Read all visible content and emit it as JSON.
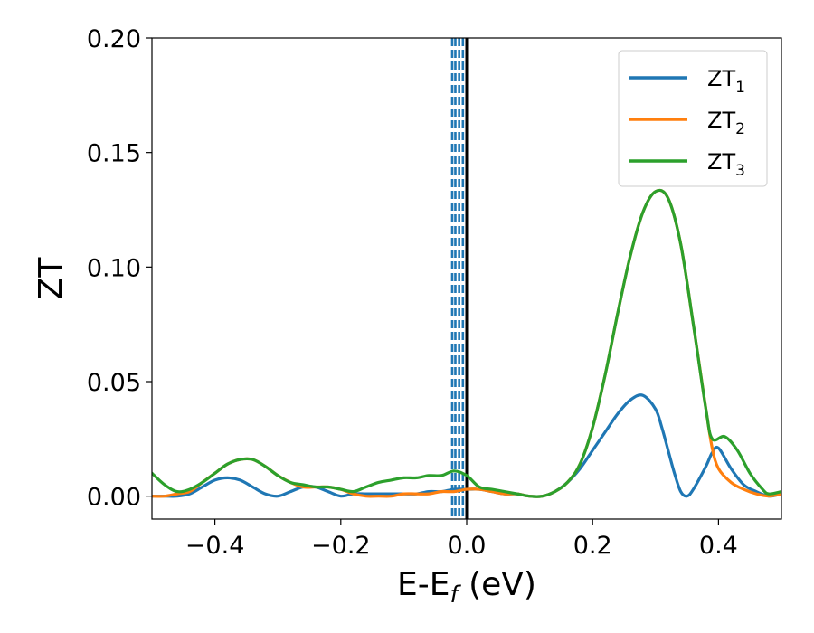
{
  "chart_data": {
    "type": "line",
    "title": "",
    "xlabel": {
      "main": "E-E",
      "sub": "f",
      "unit": " (eV)"
    },
    "ylabel": "ZT",
    "xlim": [
      -0.5,
      0.5
    ],
    "ylim": [
      -0.01,
      0.2
    ],
    "xticks": [
      -0.4,
      -0.2,
      0.0,
      0.2,
      0.4
    ],
    "xtick_labels": [
      "−0.4",
      "−0.2",
      "0.0",
      "0.2",
      "0.4"
    ],
    "yticks": [
      0.0,
      0.05,
      0.1,
      0.15,
      0.2
    ],
    "ytick_labels": [
      "0.00",
      "0.05",
      "0.10",
      "0.15",
      "0.20"
    ],
    "grid": false,
    "legend_position": "top-right",
    "vlines": [
      {
        "x": -0.023,
        "style": "dashed",
        "color": "#1f77b4"
      },
      {
        "x": -0.018,
        "style": "dashed",
        "color": "#1f77b4"
      },
      {
        "x": -0.012,
        "style": "dashed",
        "color": "#1f77b4"
      },
      {
        "x": -0.006,
        "style": "dashed",
        "color": "#1f77b4"
      },
      {
        "x": 0.0,
        "style": "solid",
        "color": "#000000"
      }
    ],
    "series": [
      {
        "name": "ZT",
        "name_sub": "1",
        "color": "#1f77b4",
        "points": [
          [
            -0.5,
            0.0
          ],
          [
            -0.48,
            0.0
          ],
          [
            -0.46,
            0.0
          ],
          [
            -0.44,
            0.001
          ],
          [
            -0.42,
            0.004
          ],
          [
            -0.4,
            0.007
          ],
          [
            -0.38,
            0.008
          ],
          [
            -0.36,
            0.007
          ],
          [
            -0.34,
            0.004
          ],
          [
            -0.32,
            0.001
          ],
          [
            -0.3,
            0.0
          ],
          [
            -0.28,
            0.002
          ],
          [
            -0.26,
            0.004
          ],
          [
            -0.24,
            0.004
          ],
          [
            -0.22,
            0.002
          ],
          [
            -0.2,
            0.0
          ],
          [
            -0.18,
            0.001
          ],
          [
            -0.16,
            0.001
          ],
          [
            -0.14,
            0.001
          ],
          [
            -0.12,
            0.001
          ],
          [
            -0.1,
            0.001
          ],
          [
            -0.08,
            0.001
          ],
          [
            -0.06,
            0.002
          ],
          [
            -0.04,
            0.002
          ],
          [
            -0.02,
            0.003
          ],
          [
            0.0,
            0.003
          ],
          [
            0.02,
            0.003
          ],
          [
            0.04,
            0.002
          ],
          [
            0.06,
            0.001
          ],
          [
            0.08,
            0.001
          ],
          [
            0.1,
            0.0
          ],
          [
            0.12,
            0.0
          ],
          [
            0.14,
            0.002
          ],
          [
            0.16,
            0.006
          ],
          [
            0.18,
            0.012
          ],
          [
            0.2,
            0.02
          ],
          [
            0.22,
            0.028
          ],
          [
            0.24,
            0.036
          ],
          [
            0.26,
            0.042
          ],
          [
            0.28,
            0.044
          ],
          [
            0.3,
            0.038
          ],
          [
            0.31,
            0.03
          ],
          [
            0.32,
            0.02
          ],
          [
            0.33,
            0.01
          ],
          [
            0.34,
            0.002
          ],
          [
            0.35,
            0.0
          ],
          [
            0.36,
            0.003
          ],
          [
            0.38,
            0.013
          ],
          [
            0.39,
            0.019
          ],
          [
            0.4,
            0.021
          ],
          [
            0.42,
            0.012
          ],
          [
            0.44,
            0.005
          ],
          [
            0.46,
            0.002
          ],
          [
            0.48,
            0.0
          ],
          [
            0.5,
            0.001
          ]
        ]
      },
      {
        "name": "ZT",
        "name_sub": "2",
        "color": "#ff7f0e",
        "points": [
          [
            -0.5,
            0.0
          ],
          [
            -0.48,
            0.0
          ],
          [
            -0.46,
            0.001
          ],
          [
            -0.44,
            0.002
          ],
          [
            -0.42,
            0.006
          ],
          [
            -0.4,
            0.01
          ],
          [
            -0.38,
            0.014
          ],
          [
            -0.36,
            0.016
          ],
          [
            -0.34,
            0.016
          ],
          [
            -0.32,
            0.013
          ],
          [
            -0.3,
            0.009
          ],
          [
            -0.28,
            0.006
          ],
          [
            -0.26,
            0.004
          ],
          [
            -0.24,
            0.004
          ],
          [
            -0.22,
            0.004
          ],
          [
            -0.2,
            0.003
          ],
          [
            -0.18,
            0.001
          ],
          [
            -0.16,
            0.0
          ],
          [
            -0.14,
            0.0
          ],
          [
            -0.12,
            0.0
          ],
          [
            -0.1,
            0.001
          ],
          [
            -0.08,
            0.001
          ],
          [
            -0.06,
            0.001
          ],
          [
            -0.04,
            0.002
          ],
          [
            -0.02,
            0.002
          ],
          [
            0.0,
            0.003
          ],
          [
            0.02,
            0.003
          ],
          [
            0.04,
            0.002
          ],
          [
            0.06,
            0.001
          ],
          [
            0.08,
            0.001
          ],
          [
            0.1,
            0.0
          ],
          [
            0.12,
            0.0
          ],
          [
            0.14,
            0.002
          ],
          [
            0.16,
            0.006
          ],
          [
            0.18,
            0.014
          ],
          [
            0.2,
            0.03
          ],
          [
            0.22,
            0.053
          ],
          [
            0.24,
            0.08
          ],
          [
            0.26,
            0.105
          ],
          [
            0.28,
            0.124
          ],
          [
            0.3,
            0.133
          ],
          [
            0.32,
            0.13
          ],
          [
            0.34,
            0.11
          ],
          [
            0.36,
            0.075
          ],
          [
            0.38,
            0.038
          ],
          [
            0.39,
            0.021
          ],
          [
            0.4,
            0.012
          ],
          [
            0.42,
            0.006
          ],
          [
            0.44,
            0.003
          ],
          [
            0.46,
            0.001
          ],
          [
            0.48,
            0.0
          ],
          [
            0.5,
            0.001
          ]
        ]
      },
      {
        "name": "ZT",
        "name_sub": "3",
        "color": "#2ca02c",
        "points": [
          [
            -0.5,
            0.01
          ],
          [
            -0.48,
            0.005
          ],
          [
            -0.46,
            0.002
          ],
          [
            -0.44,
            0.003
          ],
          [
            -0.42,
            0.006
          ],
          [
            -0.4,
            0.01
          ],
          [
            -0.38,
            0.014
          ],
          [
            -0.36,
            0.016
          ],
          [
            -0.34,
            0.016
          ],
          [
            -0.32,
            0.013
          ],
          [
            -0.3,
            0.009
          ],
          [
            -0.28,
            0.006
          ],
          [
            -0.26,
            0.005
          ],
          [
            -0.24,
            0.004
          ],
          [
            -0.22,
            0.004
          ],
          [
            -0.2,
            0.003
          ],
          [
            -0.18,
            0.002
          ],
          [
            -0.16,
            0.004
          ],
          [
            -0.14,
            0.006
          ],
          [
            -0.12,
            0.007
          ],
          [
            -0.1,
            0.008
          ],
          [
            -0.08,
            0.008
          ],
          [
            -0.06,
            0.009
          ],
          [
            -0.04,
            0.009
          ],
          [
            -0.02,
            0.011
          ],
          [
            0.0,
            0.009
          ],
          [
            0.02,
            0.004
          ],
          [
            0.04,
            0.003
          ],
          [
            0.06,
            0.002
          ],
          [
            0.08,
            0.001
          ],
          [
            0.1,
            0.0
          ],
          [
            0.12,
            0.0
          ],
          [
            0.14,
            0.002
          ],
          [
            0.16,
            0.006
          ],
          [
            0.18,
            0.014
          ],
          [
            0.2,
            0.03
          ],
          [
            0.22,
            0.053
          ],
          [
            0.24,
            0.08
          ],
          [
            0.26,
            0.105
          ],
          [
            0.28,
            0.124
          ],
          [
            0.3,
            0.133
          ],
          [
            0.32,
            0.13
          ],
          [
            0.34,
            0.11
          ],
          [
            0.36,
            0.075
          ],
          [
            0.38,
            0.038
          ],
          [
            0.39,
            0.025
          ],
          [
            0.41,
            0.026
          ],
          [
            0.43,
            0.02
          ],
          [
            0.45,
            0.01
          ],
          [
            0.47,
            0.003
          ],
          [
            0.48,
            0.001
          ],
          [
            0.5,
            0.002
          ]
        ]
      }
    ]
  }
}
